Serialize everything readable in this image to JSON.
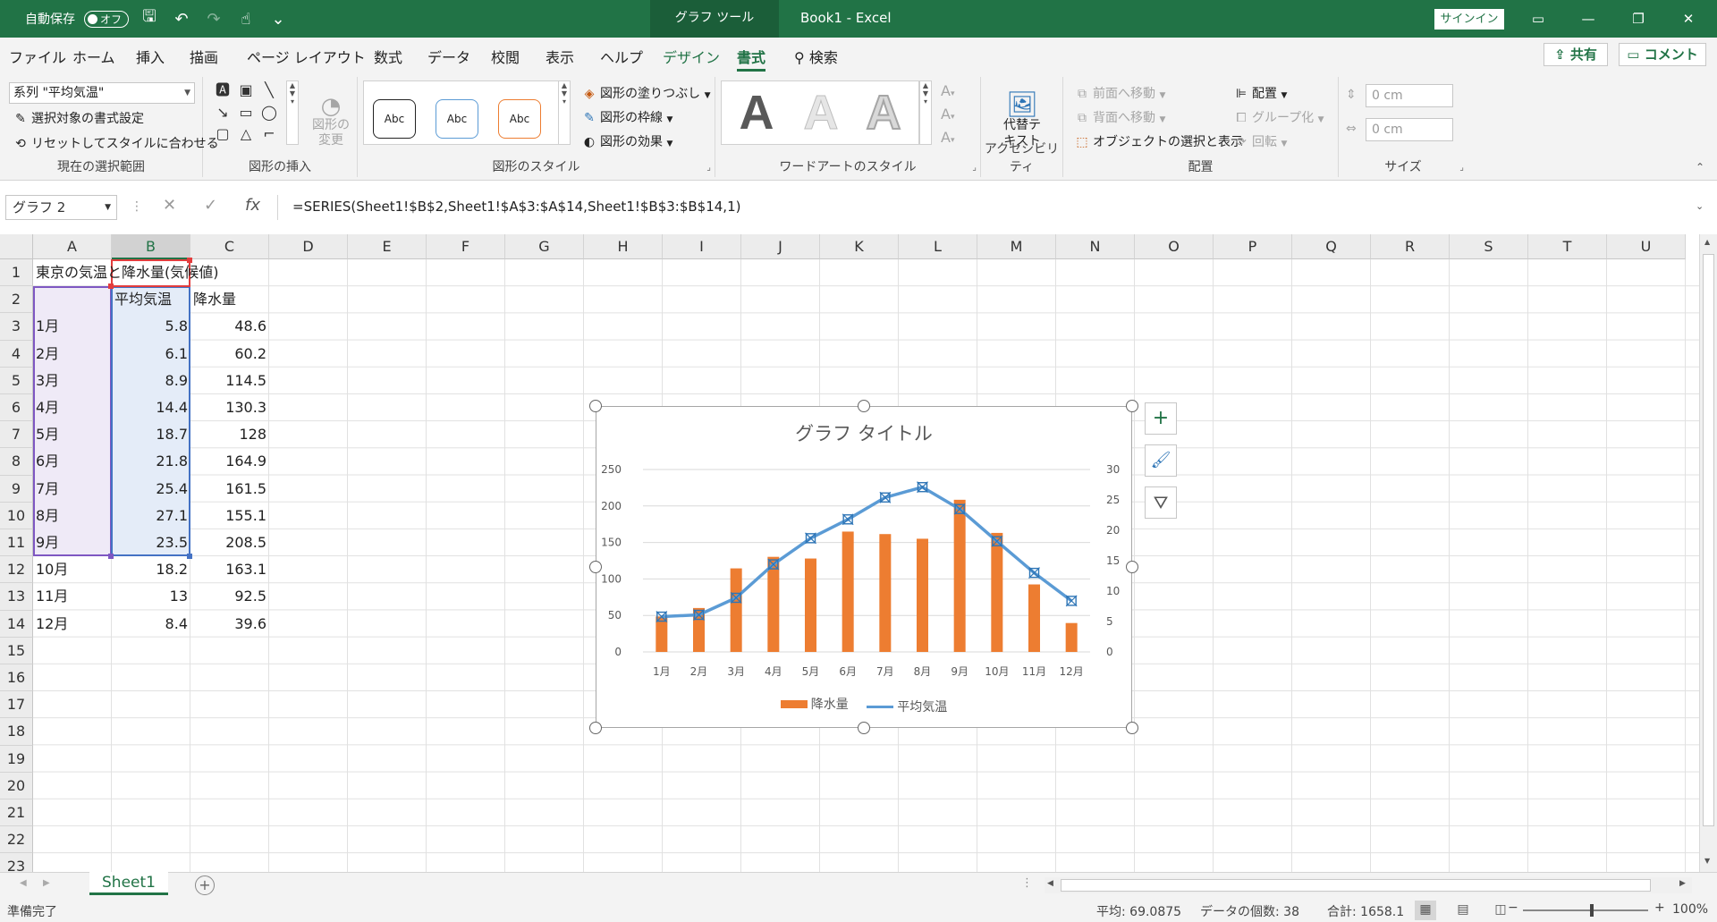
{
  "titlebar": {
    "autosave_label": "自動保存",
    "autosave_state": "オフ",
    "context_tab": "グラフ ツール",
    "doc_title": "Book1  -  Excel",
    "signin_label": "サインイン"
  },
  "tabs": [
    "ファイル",
    "ホーム",
    "挿入",
    "描画",
    "ページ レイアウト",
    "数式",
    "データ",
    "校閲",
    "表示",
    "ヘルプ",
    "デザイン",
    "書式"
  ],
  "search_label": "検索",
  "share_label": "共有",
  "comment_label": "コメント",
  "ribbon": {
    "selection": {
      "combo_value": "系列 \"平均気温\"",
      "format_selection": "選択対象の書式設定",
      "reset_style": "リセットしてスタイルに合わせる",
      "label": "現在の選択範囲"
    },
    "insert_shapes": {
      "change_shape": "図形の\n変更",
      "label": "図形の挿入"
    },
    "shape_styles": {
      "sample": "Abc",
      "fill": "図形の塗りつぶし",
      "outline": "図形の枠線",
      "effects": "図形の効果",
      "label": "図形のスタイル"
    },
    "wordart": {
      "letter": "A",
      "label": "ワードアートのスタイル"
    },
    "accessibility": {
      "alt_text": "代替テ\nキスト",
      "label": "アクセシビリティ"
    },
    "arrange": {
      "bring_forward": "前面へ移動",
      "send_backward": "背面へ移動",
      "selection_pane": "オブジェクトの選択と表示",
      "align": "配置",
      "group": "グループ化",
      "rotate": "回転",
      "label": "配置"
    },
    "size": {
      "height": "0 cm",
      "width": "0 cm",
      "label": "サイズ"
    }
  },
  "formula_bar": {
    "name_box": "グラフ 2",
    "cancel": "✕",
    "enter": "✓",
    "fx": "fx",
    "formula": "=SERIES(Sheet1!$B$2,Sheet1!$A$3:$A$14,Sheet1!$B$3:$B$14,1)"
  },
  "columns": [
    "A",
    "B",
    "C",
    "D",
    "E",
    "F",
    "G",
    "H",
    "I",
    "J",
    "K",
    "L",
    "M",
    "N",
    "O",
    "P",
    "Q",
    "R",
    "S",
    "T",
    "U"
  ],
  "rows": [
    "1",
    "2",
    "3",
    "4",
    "5",
    "6",
    "7",
    "8",
    "9",
    "10",
    "11",
    "12",
    "13",
    "14",
    "15",
    "16",
    "17",
    "18",
    "19",
    "20",
    "21",
    "22",
    "23"
  ],
  "sheet": {
    "title": "東京の気温と降水量(気候値)",
    "header_b": "平均気温",
    "header_c": "降水量",
    "months": [
      "1月",
      "2月",
      "3月",
      "4月",
      "5月",
      "6月",
      "7月",
      "8月",
      "9月",
      "10月",
      "11月",
      "12月"
    ],
    "temps": [
      "5.8",
      "6.1",
      "8.9",
      "14.4",
      "18.7",
      "21.8",
      "25.4",
      "27.1",
      "23.5",
      "18.2",
      "13",
      "8.4"
    ],
    "precip": [
      "48.6",
      "60.2",
      "114.5",
      "130.3",
      "128",
      "164.9",
      "161.5",
      "155.1",
      "208.5",
      "163.1",
      "92.5",
      "39.6"
    ]
  },
  "chart_data": {
    "type": "bar",
    "title": "グラフ タイトル",
    "categories": [
      "1月",
      "2月",
      "3月",
      "4月",
      "5月",
      "6月",
      "7月",
      "8月",
      "9月",
      "10月",
      "11月",
      "12月"
    ],
    "series": [
      {
        "name": "降水量",
        "type": "bar",
        "axis": "primary",
        "color": "#ED7D31",
        "values": [
          48.6,
          60.2,
          114.5,
          130.3,
          128,
          164.9,
          161.5,
          155.1,
          208.5,
          163.1,
          92.5,
          39.6
        ]
      },
      {
        "name": "平均気温",
        "type": "line",
        "axis": "secondary",
        "color": "#5B9BD5",
        "selected": true,
        "values": [
          5.8,
          6.1,
          8.9,
          14.4,
          18.7,
          21.8,
          25.4,
          27.1,
          23.5,
          18.2,
          13,
          8.4
        ]
      }
    ],
    "y_primary": {
      "range": [
        0,
        250
      ],
      "ticks": [
        "0",
        "50",
        "100",
        "150",
        "200",
        "250"
      ]
    },
    "y_secondary": {
      "range": [
        0,
        30
      ],
      "ticks": [
        "0",
        "5",
        "10",
        "15",
        "20",
        "25",
        "30"
      ]
    },
    "grid": true,
    "legend_position": "bottom"
  },
  "chart_tools": {
    "add_element": "+",
    "styles": "brush-icon",
    "filter": "funnel-icon"
  },
  "sheet_tab": "Sheet1",
  "status": {
    "ready": "準備完了",
    "average": "平均: 69.0875",
    "count": "データの個数: 38",
    "sum": "合計: 1658.1",
    "zoom": "100%"
  },
  "colors": {
    "excel_green": "#217346",
    "bar": "#ED7D31",
    "line": "#5B9BD5"
  }
}
